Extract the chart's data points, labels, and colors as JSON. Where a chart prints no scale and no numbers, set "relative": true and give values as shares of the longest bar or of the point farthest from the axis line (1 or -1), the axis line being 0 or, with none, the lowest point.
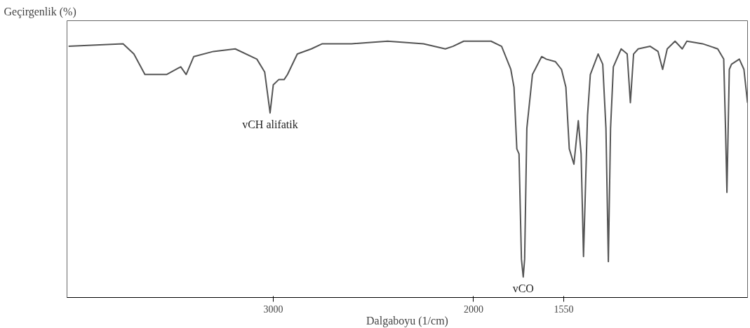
{
  "chart_data": {
    "type": "line",
    "relative": true,
    "xlabel": "Dalgaboyu (1/cm)",
    "ylabel": "Geçirgenlik (%)",
    "xlim": [
      4030,
      632
    ],
    "xticks": [
      3000,
      2000,
      1550
    ],
    "tick_labels": "x",
    "grid": false,
    "marker": "none",
    "line_style": "solid",
    "annotations": [
      {
        "text": "vCH alifatik",
        "x": 3016,
        "y": 0.72
      },
      {
        "text": "vCO",
        "x": 1752,
        "y": 0.08
      }
    ],
    "series": [
      {
        "color": "#555555",
        "x": [
          4022,
          3750,
          3696,
          3641,
          3533,
          3462,
          3435,
          3397,
          3299,
          3190,
          3082,
          3043,
          3016,
          3000,
          2973,
          2946,
          2929,
          2880,
          2810,
          2755,
          2609,
          2429,
          2250,
          2141,
          2103,
          2049,
          1913,
          1860,
          1814,
          1798,
          1784,
          1773,
          1761,
          1752,
          1745,
          1734,
          1706,
          1660,
          1637,
          1591,
          1561,
          1539,
          1522,
          1499,
          1477,
          1463,
          1451,
          1431,
          1417,
          1378,
          1355,
          1339,
          1327,
          1316,
          1302,
          1263,
          1233,
          1217,
          1201,
          1178,
          1118,
          1079,
          1056,
          1033,
          994,
          958,
          935,
          857,
          781,
          751,
          742,
          735,
          723,
          712,
          673,
          650,
          632
        ],
        "values": [
          0.98,
          0.99,
          0.95,
          0.87,
          0.87,
          0.9,
          0.87,
          0.94,
          0.96,
          0.97,
          0.93,
          0.88,
          0.72,
          0.83,
          0.85,
          0.85,
          0.87,
          0.95,
          0.97,
          0.99,
          0.99,
          1.0,
          0.99,
          0.97,
          0.98,
          1.0,
          1.0,
          0.98,
          0.89,
          0.82,
          0.58,
          0.56,
          0.15,
          0.08,
          0.15,
          0.66,
          0.87,
          0.94,
          0.93,
          0.92,
          0.89,
          0.82,
          0.58,
          0.52,
          0.69,
          0.56,
          0.16,
          0.71,
          0.87,
          0.95,
          0.91,
          0.66,
          0.14,
          0.66,
          0.9,
          0.97,
          0.95,
          0.76,
          0.95,
          0.97,
          0.98,
          0.96,
          0.89,
          0.97,
          1.0,
          0.97,
          1.0,
          0.99,
          0.97,
          0.93,
          0.66,
          0.41,
          0.89,
          0.91,
          0.93,
          0.89,
          0.76
        ]
      }
    ]
  }
}
